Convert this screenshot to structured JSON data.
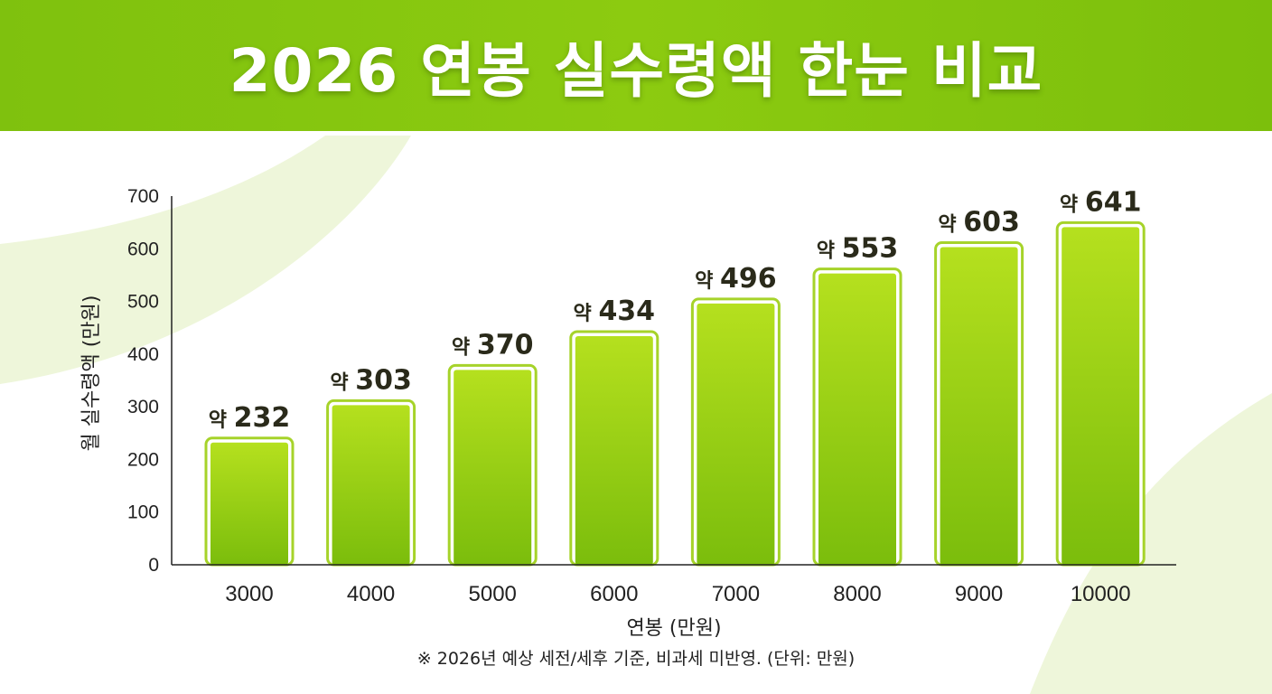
{
  "title": "2026 연봉 실수령액 한눈 비교",
  "footnote": "※ 2026년 예상 세전/세후 기준, 비과세 미반영. (단위: 만원)",
  "colors": {
    "banner": "#86c60f",
    "bar_top": "#b5e01e",
    "bar_bottom": "#7bbd0c",
    "bar_outline": "#a6d32a",
    "background_shape": "#eef6da"
  },
  "chart_data": {
    "type": "bar",
    "categories": [
      "3000",
      "4000",
      "5000",
      "6000",
      "7000",
      "8000",
      "9000",
      "10000"
    ],
    "values": [
      232,
      303,
      370,
      434,
      496,
      553,
      603,
      641
    ],
    "data_labels": [
      "약 232",
      "약 303",
      "약 370",
      "약 434",
      "약 496",
      "약 553",
      "약 603",
      "약 641"
    ],
    "xlabel": "연봉 (만원)",
    "ylabel": "월 실수령액 (만원)",
    "ylim": [
      0,
      700
    ],
    "yticks": [
      0,
      100,
      200,
      300,
      400,
      500,
      600,
      700
    ],
    "grid": false,
    "legend": "none"
  }
}
